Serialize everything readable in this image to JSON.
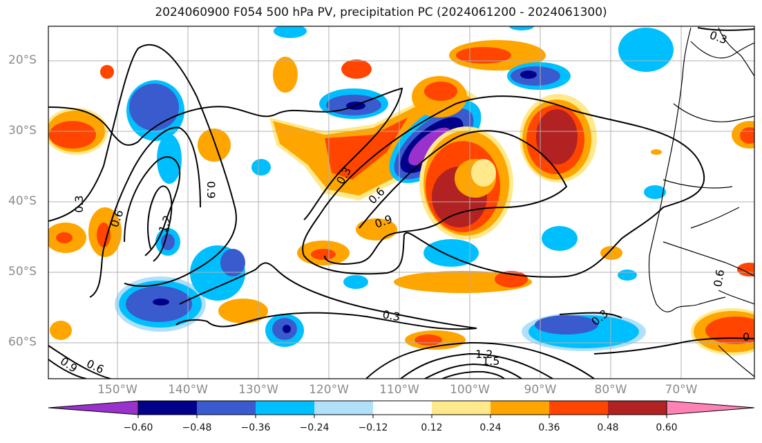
{
  "title": "2024060900 F054 500 hPa PV, precipitation PC (2024061200 - 2024061300)",
  "latitude_labels": [
    "20°S",
    "30°S",
    "40°S",
    "50°S",
    "60°S"
  ],
  "longitude_labels": [
    "150°W",
    "140°W",
    "130°W",
    "120°W",
    "110°W",
    "100°W",
    "90°W",
    "80°W",
    "70°W"
  ],
  "contour_labels": [
    "0.3",
    "0.6",
    "0.9",
    "1.2",
    "1.5",
    "0.3",
    "0.6",
    "0.9",
    "0.3",
    "0.6",
    "0.9",
    "1.2",
    "0.3",
    "0.3",
    "0.6",
    "0"
  ],
  "colorbar": {
    "tick_labels": [
      "−0.60",
      "−0.48",
      "−0.36",
      "−0.24",
      "−0.12",
      "0.12",
      "0.24",
      "0.36",
      "0.48",
      "0.60"
    ],
    "colors": [
      "#9932cc",
      "#00008b",
      "#3a5bcd",
      "#00bfff",
      "#b0e0fa",
      "#ffffff",
      "#ffe98a",
      "#ffa500",
      "#ff4500",
      "#b22222",
      "#ff82b4"
    ]
  },
  "shading_colors": {
    "neg_strong": "#9932cc",
    "neg_dark": "#00008b",
    "neg_mid": "#3a5bcd",
    "neg_light": "#00bfff",
    "neg_pale": "#b0e0fa",
    "pos_pale": "#ffe98a",
    "pos_light": "#ffa500",
    "pos_mid": "#ff4500",
    "pos_dark": "#b22222"
  }
}
